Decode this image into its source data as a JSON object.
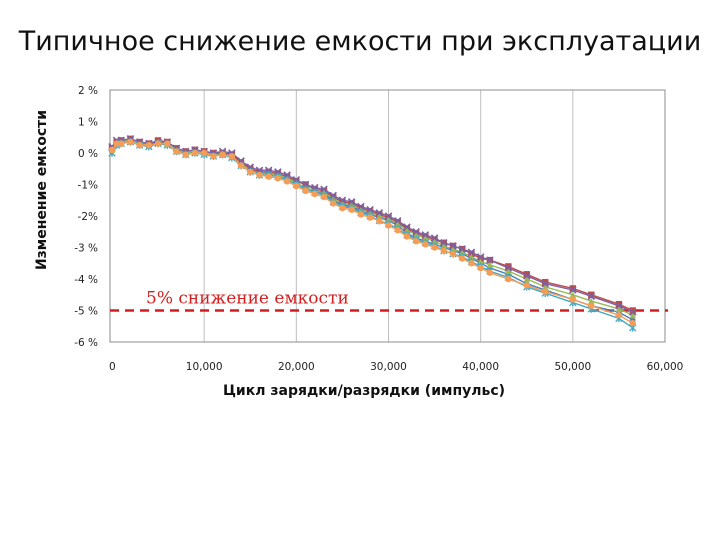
{
  "chart_data": {
    "type": "line",
    "title": "Типичное снижение емкости при эксплуатации",
    "xlabel": "Цикл зарядки/разрядки (импульс)",
    "ylabel": "Изменение емкости",
    "xlim": [
      0,
      60000
    ],
    "ylim": [
      -6,
      2
    ],
    "x_ticks": [
      0,
      10000,
      20000,
      30000,
      40000,
      50000,
      60000
    ],
    "x_tick_labels": [
      "0",
      "10,000",
      "20,000",
      "30,000",
      "40,000",
      "50,000",
      "60,000"
    ],
    "y_ticks": [
      2,
      1,
      0,
      -1,
      -2,
      -3,
      -4,
      -5,
      -6
    ],
    "y_tick_labels": [
      "2 %",
      "1 %",
      "0 %",
      "-1%",
      "-2%",
      "-3 %",
      "-4 %",
      "-5 %",
      "-6 %"
    ],
    "grid": "vertical",
    "legend": "none",
    "threshold": {
      "y": -5,
      "label": "5% снижение емкости",
      "color": "#d11f1f"
    },
    "series": [
      {
        "color": "#4a7ebb",
        "marker": "diamond",
        "x": [
          0,
          500,
          1000,
          2000,
          3000,
          4000,
          5000,
          6000,
          7000,
          8000,
          9000,
          10000,
          11000,
          12000,
          13000,
          14000,
          15000,
          16000,
          17000,
          18000,
          19000,
          20000,
          21000,
          22000,
          23000,
          24000,
          25000,
          26000,
          27000,
          28000,
          29000,
          30000,
          31000,
          32000,
          33000,
          34000,
          35000,
          36000,
          37000,
          38000,
          39000,
          40000,
          41000,
          43000,
          45000,
          47000,
          50000,
          52000,
          55000,
          56500
        ],
        "y": [
          0.05,
          0.25,
          0.35,
          0.4,
          0.3,
          0.3,
          0.35,
          0.3,
          0.1,
          -0.05,
          0.05,
          0.0,
          -0.05,
          0.0,
          -0.05,
          -0.3,
          -0.55,
          -0.6,
          -0.65,
          -0.7,
          -0.8,
          -0.95,
          -1.1,
          -1.2,
          -1.3,
          -1.5,
          -1.65,
          -1.7,
          -1.85,
          -1.95,
          -2.05,
          -2.15,
          -2.3,
          -2.55,
          -2.7,
          -2.8,
          -2.9,
          -3.0,
          -3.1,
          -3.2,
          -3.35,
          -3.5,
          -3.65,
          -3.85,
          -4.15,
          -4.35,
          -4.65,
          -4.85,
          -5.05,
          -5.3
        ]
      },
      {
        "color": "#be4b48",
        "marker": "square",
        "x": [
          0,
          500,
          1000,
          2000,
          3000,
          4000,
          5000,
          6000,
          7000,
          8000,
          9000,
          10000,
          11000,
          12000,
          13000,
          14000,
          15000,
          16000,
          17000,
          18000,
          19000,
          20000,
          21000,
          22000,
          23000,
          24000,
          25000,
          26000,
          27000,
          28000,
          29000,
          30000,
          31000,
          32000,
          33000,
          34000,
          35000,
          36000,
          37000,
          38000,
          39000,
          40000,
          41000,
          43000,
          45000,
          47000,
          50000,
          52000,
          55000,
          56500
        ],
        "y": [
          0.15,
          0.35,
          0.4,
          0.45,
          0.35,
          0.3,
          0.4,
          0.35,
          0.15,
          0.05,
          0.1,
          0.05,
          0.0,
          0.0,
          -0.05,
          -0.3,
          -0.5,
          -0.6,
          -0.6,
          -0.65,
          -0.75,
          -0.9,
          -1.0,
          -1.15,
          -1.2,
          -1.4,
          -1.55,
          -1.6,
          -1.75,
          -1.85,
          -1.95,
          -2.05,
          -2.2,
          -2.4,
          -2.55,
          -2.65,
          -2.75,
          -2.85,
          -2.95,
          -3.05,
          -3.2,
          -3.35,
          -3.4,
          -3.6,
          -3.85,
          -4.1,
          -4.3,
          -4.5,
          -4.8,
          -5.0
        ]
      },
      {
        "color": "#98b954",
        "marker": "triangle",
        "x": [
          0,
          500,
          1000,
          2000,
          3000,
          4000,
          5000,
          6000,
          7000,
          8000,
          9000,
          10000,
          11000,
          12000,
          13000,
          14000,
          15000,
          16000,
          17000,
          18000,
          19000,
          20000,
          21000,
          22000,
          23000,
          24000,
          25000,
          26000,
          27000,
          28000,
          29000,
          30000,
          31000,
          32000,
          33000,
          34000,
          35000,
          36000,
          37000,
          38000,
          39000,
          40000,
          41000,
          43000,
          45000,
          47000,
          50000,
          52000,
          55000,
          56500
        ],
        "y": [
          0.1,
          0.3,
          0.35,
          0.4,
          0.3,
          0.25,
          0.35,
          0.3,
          0.1,
          0.0,
          0.05,
          0.0,
          -0.05,
          -0.05,
          -0.1,
          -0.35,
          -0.55,
          -0.65,
          -0.65,
          -0.7,
          -0.8,
          -0.95,
          -1.1,
          -1.2,
          -1.25,
          -1.45,
          -1.6,
          -1.65,
          -1.8,
          -1.9,
          -2.0,
          -2.1,
          -2.25,
          -2.45,
          -2.6,
          -2.7,
          -2.8,
          -2.95,
          -3.05,
          -3.15,
          -3.3,
          -3.45,
          -3.55,
          -3.75,
          -4.0,
          -4.25,
          -4.5,
          -4.7,
          -4.95,
          -5.15
        ]
      },
      {
        "color": "#7d60a0",
        "marker": "x",
        "x": [
          0,
          500,
          1000,
          2000,
          3000,
          4000,
          5000,
          6000,
          7000,
          8000,
          9000,
          10000,
          11000,
          12000,
          13000,
          14000,
          15000,
          16000,
          17000,
          18000,
          19000,
          20000,
          21000,
          22000,
          23000,
          24000,
          25000,
          26000,
          27000,
          28000,
          29000,
          30000,
          31000,
          32000,
          33000,
          34000,
          35000,
          36000,
          37000,
          38000,
          39000,
          40000,
          41000,
          43000,
          45000,
          47000,
          50000,
          52000,
          55000,
          56500
        ],
        "y": [
          0.2,
          0.4,
          0.4,
          0.45,
          0.35,
          0.3,
          0.35,
          0.35,
          0.15,
          0.05,
          0.1,
          0.05,
          0.0,
          0.05,
          0.0,
          -0.25,
          -0.45,
          -0.55,
          -0.55,
          -0.6,
          -0.7,
          -0.85,
          -1.0,
          -1.1,
          -1.15,
          -1.35,
          -1.5,
          -1.55,
          -1.7,
          -1.8,
          -1.9,
          -2.0,
          -2.15,
          -2.35,
          -2.5,
          -2.6,
          -2.7,
          -2.85,
          -2.95,
          -3.05,
          -3.15,
          -3.3,
          -3.4,
          -3.65,
          -3.9,
          -4.15,
          -4.35,
          -4.55,
          -4.85,
          -5.05
        ]
      },
      {
        "color": "#46aac5",
        "marker": "star",
        "x": [
          0,
          500,
          1000,
          2000,
          3000,
          4000,
          5000,
          6000,
          7000,
          8000,
          9000,
          10000,
          11000,
          12000,
          13000,
          14000,
          15000,
          16000,
          17000,
          18000,
          19000,
          20000,
          21000,
          22000,
          23000,
          24000,
          25000,
          26000,
          27000,
          28000,
          29000,
          30000,
          31000,
          32000,
          33000,
          34000,
          35000,
          36000,
          37000,
          38000,
          39000,
          40000,
          41000,
          43000,
          45000,
          47000,
          50000,
          52000,
          55000,
          56500
        ],
        "y": [
          0.0,
          0.25,
          0.3,
          0.35,
          0.25,
          0.2,
          0.3,
          0.25,
          0.05,
          -0.05,
          0.0,
          -0.05,
          -0.1,
          -0.05,
          -0.15,
          -0.4,
          -0.6,
          -0.7,
          -0.7,
          -0.75,
          -0.85,
          -1.0,
          -1.15,
          -1.25,
          -1.35,
          -1.55,
          -1.7,
          -1.75,
          -1.9,
          -2.0,
          -2.15,
          -2.25,
          -2.4,
          -2.6,
          -2.75,
          -2.85,
          -2.95,
          -3.1,
          -3.2,
          -3.3,
          -3.45,
          -3.6,
          -3.75,
          -3.95,
          -4.25,
          -4.45,
          -4.75,
          -4.95,
          -5.25,
          -5.55
        ]
      },
      {
        "color": "#f59d56",
        "marker": "circle",
        "x": [
          0,
          500,
          1000,
          2000,
          3000,
          4000,
          5000,
          6000,
          7000,
          8000,
          9000,
          10000,
          11000,
          12000,
          13000,
          14000,
          15000,
          16000,
          17000,
          18000,
          19000,
          20000,
          21000,
          22000,
          23000,
          24000,
          25000,
          26000,
          27000,
          28000,
          29000,
          30000,
          31000,
          32000,
          33000,
          34000,
          35000,
          36000,
          37000,
          38000,
          39000,
          40000,
          41000,
          43000,
          45000,
          47000,
          50000,
          52000,
          55000,
          56500
        ],
        "y": [
          0.1,
          0.3,
          0.3,
          0.35,
          0.25,
          0.25,
          0.3,
          0.3,
          0.05,
          -0.05,
          0.0,
          0.0,
          -0.1,
          -0.05,
          -0.1,
          -0.4,
          -0.6,
          -0.7,
          -0.75,
          -0.8,
          -0.9,
          -1.05,
          -1.2,
          -1.3,
          -1.4,
          -1.6,
          -1.75,
          -1.8,
          -1.95,
          -2.05,
          -2.15,
          -2.3,
          -2.45,
          -2.65,
          -2.8,
          -2.9,
          -3.0,
          -3.1,
          -3.2,
          -3.35,
          -3.5,
          -3.65,
          -3.8,
          -4.0,
          -4.2,
          -4.4,
          -4.65,
          -4.85,
          -5.15,
          -5.4
        ]
      }
    ]
  }
}
